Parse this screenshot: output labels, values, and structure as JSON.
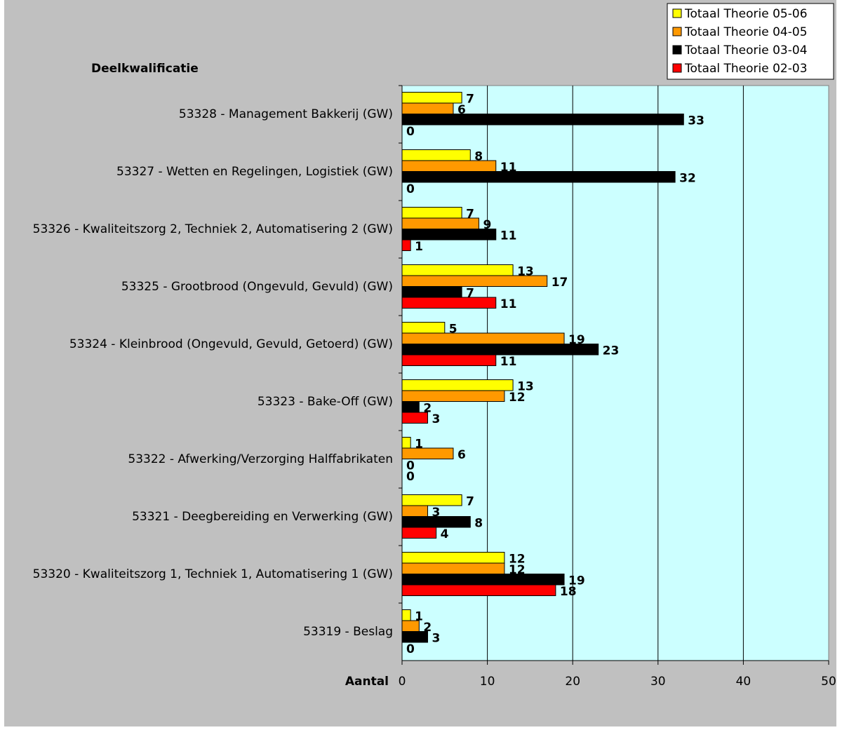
{
  "chart_data": {
    "type": "hbar",
    "y_axis_title": "Deelkwalificatie",
    "x_axis_title": "Aantal",
    "categories": [
      "53328 - Management Bakkerij (GW)",
      "53327 - Wetten en Regelingen, Logistiek (GW)",
      "53326 - Kwaliteitszorg 2, Techniek 2, Automatisering 2 (GW)",
      "53325 - Grootbrood (Ongevuld, Gevuld) (GW)",
      "53324 - Kleinbrood (Ongevuld, Gevuld, Getoerd) (GW)",
      "53323 - Bake-Off (GW)",
      "53322 - Afwerking/Verzorging Halffabrikaten",
      "53321 - Deegbereiding en Verwerking (GW)",
      "53320 - Kwaliteitszorg 1, Techniek 1, Automatisering 1 (GW)",
      "53319 - Beslag"
    ],
    "series": [
      {
        "name": "Totaal Theorie 05-06",
        "color": "#ffff00",
        "values": [
          7,
          8,
          7,
          13,
          5,
          13,
          1,
          7,
          12,
          1
        ]
      },
      {
        "name": "Totaal Theorie 04-05",
        "color": "#ff9900",
        "values": [
          6,
          11,
          9,
          17,
          19,
          12,
          6,
          3,
          12,
          2
        ]
      },
      {
        "name": "Totaal Theorie 03-04",
        "color": "#000000",
        "values": [
          33,
          32,
          11,
          7,
          23,
          2,
          0,
          8,
          19,
          3
        ]
      },
      {
        "name": "Totaal Theorie 02-03",
        "color": "#ff0000",
        "values": [
          0,
          0,
          1,
          11,
          11,
          3,
          0,
          4,
          18,
          0
        ]
      }
    ],
    "xlim": [
      0,
      50
    ],
    "xticks": [
      0,
      10,
      20,
      30,
      40,
      50
    ],
    "grid": true,
    "legend": "top-right"
  }
}
